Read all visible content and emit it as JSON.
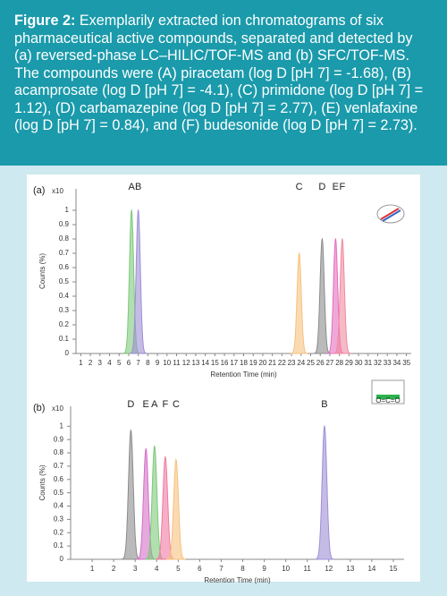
{
  "caption": {
    "label": "Figure 2:",
    "text": "Exemplarily extracted ion chromatograms of six pharmaceutical active compounds, separated and detected by (a) reversed-phase LC–HILIC/TOF-MS and (b) SFC/TOF-MS. The compounds were (A) piracetam (log D [pH 7] = -1.68), (B) acamprosate (log D [pH 7] = -4.1), (C) primidone (log D [pH 7] = 1.12), (D) carbamazepine (log D [pH 7] = 2.77), (E) venlafaxine (log D [pH 7] = 0.84), and (F) budesonide (log D [pH 7] = 2.73)."
  },
  "chart_data": [
    {
      "type": "chromatogram",
      "panel": "(a)",
      "y_multiplier": "x10",
      "xlabel": "Retention Time (min)",
      "ylabel": "Counts (%)",
      "xlim": [
        0.5,
        35.5
      ],
      "xticks": [
        1,
        2,
        3,
        4,
        5,
        6,
        7,
        8,
        9,
        10,
        11,
        12,
        13,
        14,
        15,
        16,
        17,
        18,
        19,
        20,
        21,
        22,
        23,
        24,
        25,
        26,
        27,
        28,
        29,
        30,
        31,
        32,
        33,
        34,
        35
      ],
      "ylim": [
        0,
        1.15
      ],
      "yticks": [
        0,
        0.1,
        0.2,
        0.3,
        0.4,
        0.5,
        0.6,
        0.7,
        0.8,
        0.9,
        1
      ],
      "peaks": [
        {
          "label": "A",
          "x": 6.3,
          "height": 1.0,
          "color": "#7dc97a"
        },
        {
          "label": "B",
          "x": 7.0,
          "height": 1.0,
          "color": "#9f8fd6"
        },
        {
          "label": "C",
          "x": 23.8,
          "height": 0.7,
          "color": "#f7c27e"
        },
        {
          "label": "D",
          "x": 26.2,
          "height": 0.8,
          "color": "#8c8c8c"
        },
        {
          "label": "E",
          "x": 27.6,
          "height": 0.8,
          "color": "#e46fc0"
        },
        {
          "label": "F",
          "x": 28.3,
          "height": 0.8,
          "color": "#f08aa0"
        }
      ]
    },
    {
      "type": "chromatogram",
      "panel": "(b)",
      "y_multiplier": "x10",
      "xlabel": "Retention Time (min)",
      "ylabel": "Counts (%)",
      "icon_text": "O=C=O",
      "xlim": [
        0,
        15.5
      ],
      "xticks": [
        1,
        2,
        3,
        4,
        5,
        6,
        7,
        8,
        9,
        10,
        11,
        12,
        13,
        14,
        15
      ],
      "ylim": [
        0,
        1.15
      ],
      "yticks": [
        0,
        0.1,
        0.2,
        0.3,
        0.4,
        0.5,
        0.6,
        0.7,
        0.8,
        0.9,
        1
      ],
      "peaks": [
        {
          "label": "D",
          "x": 2.8,
          "height": 0.97,
          "color": "#8c8c8c"
        },
        {
          "label": "E",
          "x": 3.5,
          "height": 0.83,
          "color": "#d36fc7"
        },
        {
          "label": "A",
          "x": 3.9,
          "height": 0.85,
          "color": "#7dc97a"
        },
        {
          "label": "F",
          "x": 4.4,
          "height": 0.77,
          "color": "#f07aa0"
        },
        {
          "label": "C",
          "x": 4.9,
          "height": 0.75,
          "color": "#f7c27e"
        },
        {
          "label": "B",
          "x": 11.8,
          "height": 1.0,
          "color": "#9f8fd6"
        }
      ]
    }
  ]
}
